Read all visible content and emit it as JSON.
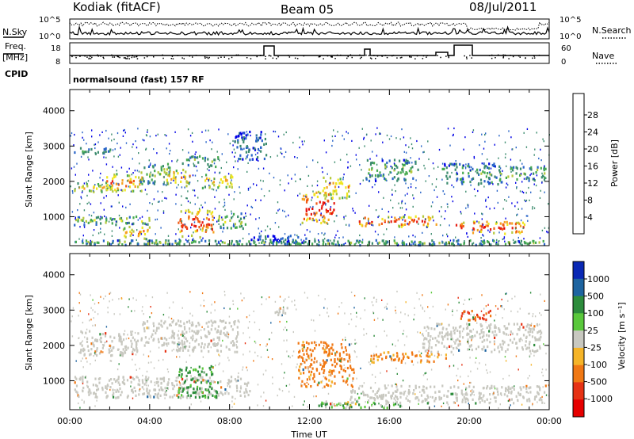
{
  "header": {
    "radar": "Kodiak (fitACF)",
    "beam": "Beam 05",
    "date": "08/Jul/2011"
  },
  "top_panels": {
    "nsky_label": "N.Sky",
    "nsearch_label": "N.Search",
    "noise_ticks": [
      "10^5",
      "10^0"
    ],
    "freq_label_1": "Freq.",
    "freq_label_2": "[MHz]",
    "freq_ticks": [
      "18",
      "8"
    ],
    "nave_label": "Nave",
    "nave_ticks": [
      "60",
      "0"
    ],
    "cpid_label": "CPID",
    "cpid_value": "normalsound (fast) 157 RF"
  },
  "chart_data": [
    {
      "type": "heatmap",
      "panel": "power",
      "xlabel": "",
      "ylabel": "Slant Range [km]",
      "yticks": [
        "4000",
        "3000",
        "2000",
        "1000"
      ],
      "ylim": [
        180,
        4600
      ],
      "colorbar_label": "Power [dB]",
      "colorbar_ticks": [
        "28",
        "24",
        "20",
        "16",
        "12",
        "8",
        "4"
      ],
      "colorbar_colors": [
        "#0000e6",
        "#2864c8",
        "#3c8c6e",
        "#46aa50",
        "#b4c83c",
        "#f0e61e",
        "#f5a01e",
        "#f05a14",
        "#e61e14",
        "#e60000"
      ],
      "regions": [
        {
          "t0": 0.2,
          "t1": 2.0,
          "r0": 2750,
          "r1": 2950,
          "level": 0.3
        },
        {
          "t0": 0.2,
          "t1": 2.2,
          "r0": 1650,
          "r1": 1950,
          "level": 0.55
        },
        {
          "t0": 1.6,
          "t1": 3.6,
          "r0": 1700,
          "r1": 2200,
          "level": 0.75
        },
        {
          "t0": 3.5,
          "t1": 5.0,
          "r0": 1900,
          "r1": 2500,
          "level": 0.4
        },
        {
          "t0": 4.8,
          "t1": 6.0,
          "r0": 1850,
          "r1": 2350,
          "level": 0.7
        },
        {
          "t0": 5.6,
          "t1": 7.4,
          "r0": 2400,
          "r1": 2700,
          "level": 0.35
        },
        {
          "t0": 6.6,
          "t1": 8.2,
          "r0": 1800,
          "r1": 2200,
          "level": 0.6
        },
        {
          "t0": 0.2,
          "t1": 4.2,
          "r0": 750,
          "r1": 1000,
          "level": 0.45
        },
        {
          "t0": 2.6,
          "t1": 4.0,
          "r0": 350,
          "r1": 700,
          "level": 0.7
        },
        {
          "t0": 5.4,
          "t1": 7.2,
          "r0": 400,
          "r1": 1200,
          "level": 0.85
        },
        {
          "t0": 7.4,
          "t1": 8.8,
          "r0": 650,
          "r1": 1100,
          "level": 0.45
        },
        {
          "t0": 8.2,
          "t1": 9.8,
          "r0": 2600,
          "r1": 3400,
          "level": 0.2
        },
        {
          "t0": 11.6,
          "t1": 13.2,
          "r0": 800,
          "r1": 1700,
          "level": 0.95
        },
        {
          "t0": 12.6,
          "t1": 14.0,
          "r0": 1500,
          "r1": 2100,
          "level": 0.7
        },
        {
          "t0": 14.4,
          "t1": 18.4,
          "r0": 700,
          "r1": 1000,
          "level": 0.85
        },
        {
          "t0": 14.8,
          "t1": 17.4,
          "r0": 2000,
          "r1": 2600,
          "level": 0.35
        },
        {
          "t0": 18.6,
          "t1": 21.6,
          "r0": 1900,
          "r1": 2500,
          "level": 0.3
        },
        {
          "t0": 19.2,
          "t1": 22.8,
          "r0": 500,
          "r1": 850,
          "level": 0.9
        },
        {
          "t0": 21.8,
          "t1": 23.8,
          "r0": 2000,
          "r1": 2400,
          "level": 0.4
        },
        {
          "t0": 9.0,
          "t1": 12.0,
          "r0": 250,
          "r1": 450,
          "level": 0.15
        },
        {
          "t0": 0.2,
          "t1": 23.8,
          "r0": 180,
          "r1": 320,
          "level": 0.35
        }
      ]
    },
    {
      "type": "heatmap",
      "panel": "velocity",
      "xlabel": "Time UT",
      "ylabel": "Slant Range [km]",
      "yticks": [
        "4000",
        "3000",
        "2000",
        "1000"
      ],
      "ylim": [
        180,
        4600
      ],
      "xticks": [
        "00:00",
        "04:00",
        "08:00",
        "12:00",
        "16:00",
        "20:00",
        "00:00"
      ],
      "colorbar_label": "Velocity [m s⁻¹]",
      "colorbar_ticks": [
        "1000",
        "500",
        "100",
        "25",
        "-25",
        "-100",
        "-500",
        "-1000"
      ],
      "colorbar_colors": [
        "#0a28b4",
        "#1e64a0",
        "#2d8c3c",
        "#5ac83c",
        "#c8c8c0",
        "#f5b428",
        "#f07814",
        "#e63214",
        "#e60000"
      ],
      "regions": [
        {
          "t0": 0.4,
          "t1": 3.6,
          "r0": 1700,
          "r1": 2400,
          "v": 0
        },
        {
          "t0": 3.6,
          "t1": 8.4,
          "r0": 1800,
          "r1": 2700,
          "v": 0
        },
        {
          "t0": 0.2,
          "t1": 9.0,
          "r0": 500,
          "r1": 1100,
          "v": 0
        },
        {
          "t0": 5.4,
          "t1": 7.4,
          "r0": 500,
          "r1": 1400,
          "v": 150
        },
        {
          "t0": 11.4,
          "t1": 14.2,
          "r0": 800,
          "r1": 2100,
          "v": -200
        },
        {
          "t0": 12.4,
          "t1": 16.6,
          "r0": 200,
          "r1": 400,
          "v": 80
        },
        {
          "t0": 14.0,
          "t1": 23.8,
          "r0": 350,
          "r1": 850,
          "v": 0
        },
        {
          "t0": 15.0,
          "t1": 19.0,
          "r0": 1500,
          "r1": 1800,
          "v": -150
        },
        {
          "t0": 19.4,
          "t1": 21.2,
          "r0": 2700,
          "r1": 3000,
          "v": -500
        },
        {
          "t0": 17.6,
          "t1": 23.6,
          "r0": 1800,
          "r1": 2600,
          "v": 0
        },
        {
          "t0": 10.2,
          "t1": 11.0,
          "r0": 2800,
          "r1": 3100,
          "v": 0
        }
      ]
    }
  ]
}
